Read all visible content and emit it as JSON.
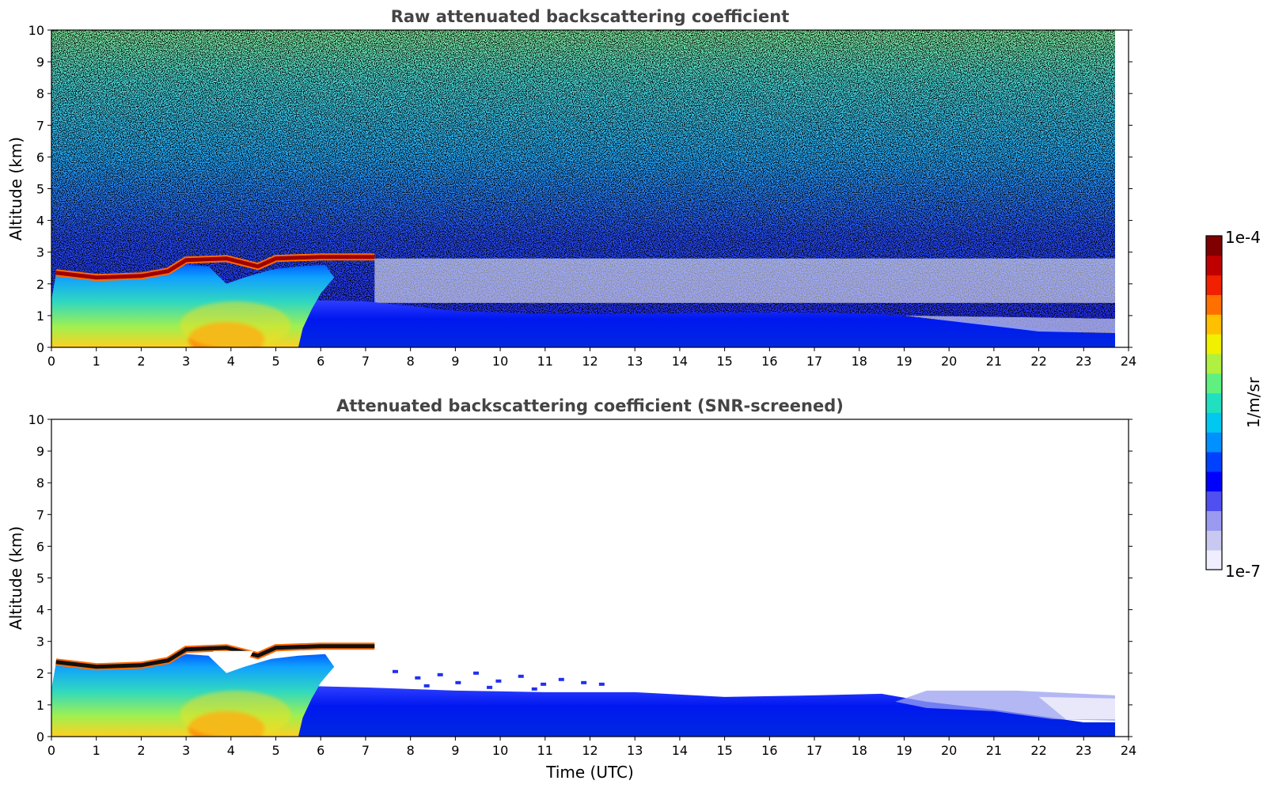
{
  "chart_data": [
    {
      "type": "heatmap",
      "title": "Raw attenuated backscattering coefficient",
      "xlabel": "",
      "ylabel": "Altitude (km)",
      "xlim": [
        0,
        24
      ],
      "ylim": [
        0,
        10
      ],
      "x_ticks": [
        "0",
        "1",
        "2",
        "3",
        "4",
        "5",
        "6",
        "7",
        "8",
        "9",
        "10",
        "11",
        "12",
        "13",
        "14",
        "15",
        "16",
        "17",
        "18",
        "19",
        "20",
        "21",
        "22",
        "23",
        "24"
      ],
      "y_ticks": [
        "0",
        "1",
        "2",
        "3",
        "4",
        "5",
        "6",
        "7",
        "8",
        "9",
        "10"
      ],
      "data_extent_x": [
        0,
        23.7
      ],
      "noise": "noisy pixels throughout the whole column, increasing in intensity with altitude",
      "features": [
        {
          "name": "cloud layer",
          "time_range": [
            0.1,
            7.2
          ],
          "altitude_km": [
            2.2,
            2.9
          ],
          "level": "1e-4 (dark red)"
        },
        {
          "name": "aerosol layer",
          "time_range": [
            0,
            6.2
          ],
          "altitude_km": [
            0,
            2.6
          ],
          "level": "cyan to yellow, peak near 4 UTC"
        },
        {
          "name": "boundary layer",
          "time_range": [
            5.5,
            23.7
          ],
          "altitude_km": [
            0,
            1.4
          ],
          "level": "blue"
        }
      ]
    },
    {
      "type": "heatmap",
      "title": "Attenuated backscattering coefficient (SNR-screened)",
      "xlabel": "Time (UTC)",
      "ylabel": "Altitude (km)",
      "xlim": [
        0,
        24
      ],
      "ylim": [
        0,
        10
      ],
      "x_ticks": [
        "0",
        "1",
        "2",
        "3",
        "4",
        "5",
        "6",
        "7",
        "8",
        "9",
        "10",
        "11",
        "12",
        "13",
        "14",
        "15",
        "16",
        "17",
        "18",
        "19",
        "20",
        "21",
        "22",
        "23",
        "24"
      ],
      "y_ticks": [
        "0",
        "1",
        "2",
        "3",
        "4",
        "5",
        "6",
        "7",
        "8",
        "9",
        "10"
      ],
      "data_extent_x": [
        0,
        23.7
      ],
      "noise": "screened out (white)",
      "features": [
        {
          "name": "cloud layer",
          "time_range": [
            0.1,
            7.2
          ],
          "altitude_km": [
            2.2,
            2.9
          ],
          "level": "1e-4 (dark red / black)"
        },
        {
          "name": "aerosol layer",
          "time_range": [
            0,
            6.2
          ],
          "altitude_km": [
            0,
            2.6
          ],
          "level": "cyan to yellow, peak near 4 UTC"
        },
        {
          "name": "boundary layer",
          "time_range": [
            5.5,
            23.7
          ],
          "altitude_km": [
            0,
            1.5
          ],
          "level": "blue"
        }
      ]
    }
  ],
  "colorbar": {
    "max_label": "1e-4",
    "min_label": "1e-7",
    "unit_label": "1/m/sr",
    "colormap": [
      "#eeeeff",
      "#c8c8f0",
      "#9a9af0",
      "#5050f0",
      "#0000ff",
      "#0040ff",
      "#0090ff",
      "#00c8f0",
      "#20e0c0",
      "#60f080",
      "#b0f040",
      "#f0f000",
      "#ffc000",
      "#ff7000",
      "#f02000",
      "#c00000",
      "#800000"
    ]
  }
}
